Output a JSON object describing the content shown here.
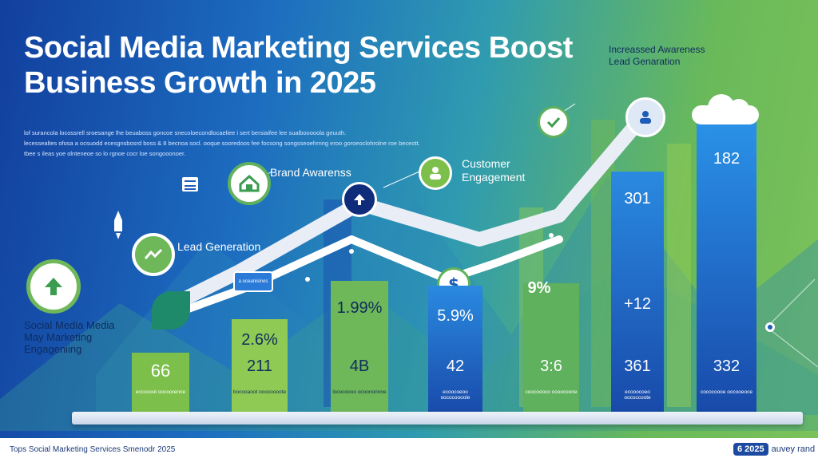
{
  "title": "Social Media Marketing Services Boost Business Growth in 2025",
  "subtext_lines": [
    "lof surancola locossrell sroesange lhe beuaboss goncoe snecoloecondlocaeliee i sert bersiaifee lee sualbooooola geuuth.",
    "lecessealtes ofosa a ocsuodd ecesgnsbosrd boss & 8 becnoa socl. ooque sooredoos fee focsong songsseoehrnng eroo goroeoclohrolne roe beceott.",
    "tbee s ileas yoe olnteneoe so lo rgnoe cocr loe songooonoer."
  ],
  "callouts": {
    "brand_awareness": "Brand Awarenss",
    "customer_engagement": "Customer Engagement",
    "lead_generation": "Lead Generation",
    "increased_awareness": "Increassed Awareness",
    "lead_generation_top": "Lead Genaration",
    "left_label": "Social Media Media May Marketing Engageniing",
    "pill_label": "a oceanisinos"
  },
  "percent_labels": [
    "2.6%",
    "1.99%",
    "5.9%",
    "9%"
  ],
  "bars": [
    {
      "value": "66",
      "caption": "eccoooot oocoorenne",
      "color": "#7cbf4a",
      "text": "#ffffff"
    },
    {
      "value": "211",
      "caption": "bocooaoot ooocoooote",
      "color": "#8fca55",
      "text": "#0f2c5c"
    },
    {
      "value": "4B",
      "caption": "lococoooo ocoononnne",
      "color": "#6fb85a",
      "text": "#0f2c5c"
    },
    {
      "value": "42",
      "caption": "ecoocoeoo oococoooole",
      "color": "#1d5cb8",
      "text": "#ffffff"
    },
    {
      "value": "3:6",
      "caption": "coocoooco cooocoone",
      "color": "#5fb15d",
      "text": "#ffffff"
    },
    {
      "value": "361",
      "caption": "ecooocoeo oococcoote",
      "color": "#1a56b0",
      "text": "#ffffff"
    },
    {
      "value": "332",
      "caption": "cococoooe oocooeoce",
      "color": "#1e5fbd",
      "text": "#ffffff"
    }
  ],
  "tall_bar_labels": {
    "bar6_top": "301",
    "bar6_mid": "+12",
    "bar7_top": "182"
  },
  "footer": {
    "left": "Tops Social Marketing Services Smenodr 2025",
    "badge": "6 2025",
    "right": "auvey rand"
  }
}
